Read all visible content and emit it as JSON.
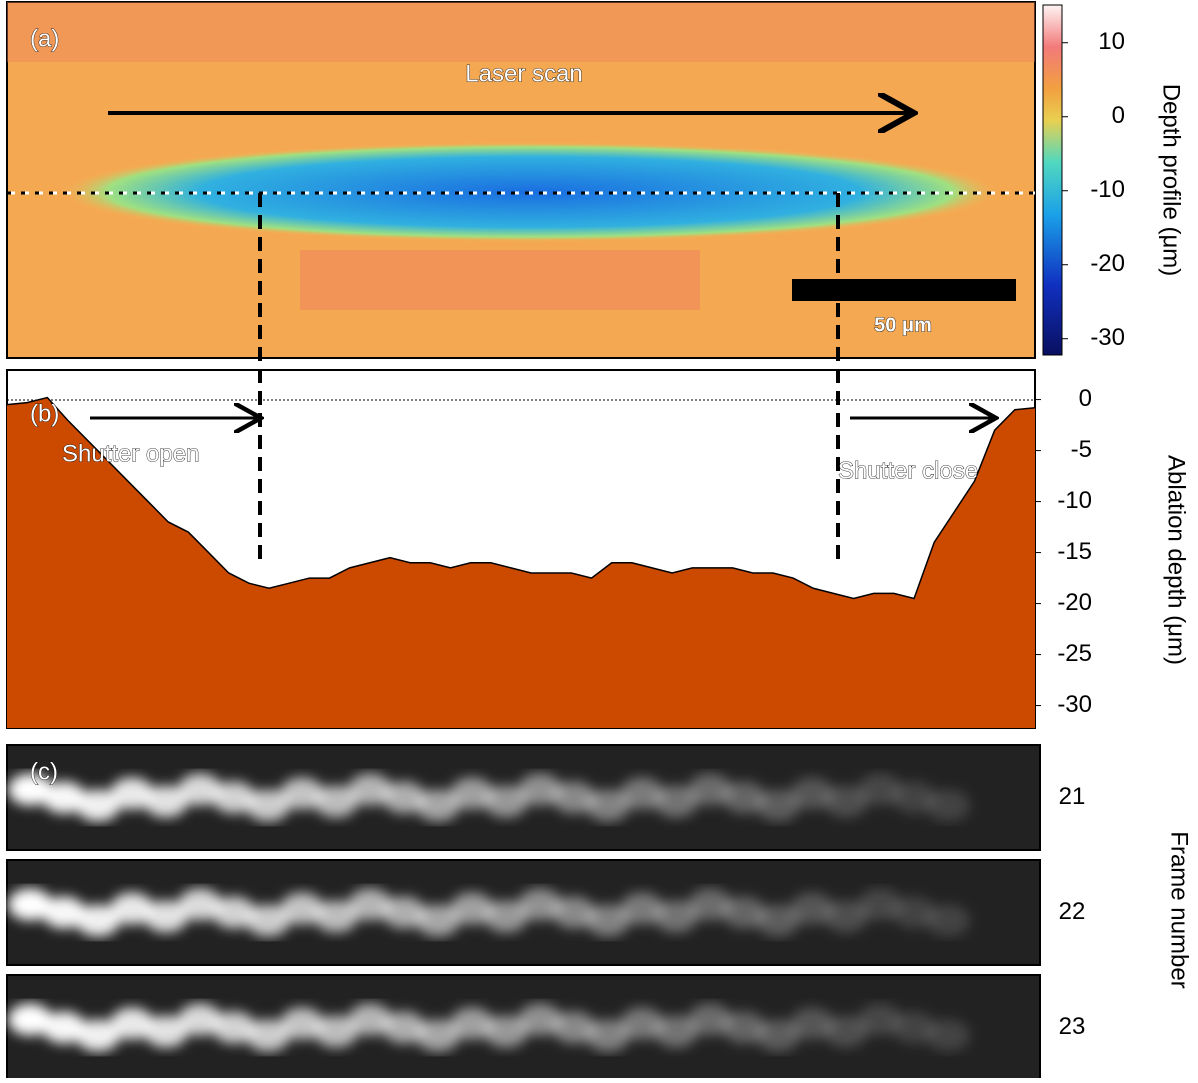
{
  "chart_data": [
    {
      "type": "heatmap",
      "label": "(a)",
      "annotation": "Laser scan",
      "scale_bar": "50 μm",
      "colorbar_label": "Depth profile (μm)",
      "clim": [
        -32.2,
        15.1
      ],
      "cticks": [
        10,
        0,
        -10,
        -20,
        -30
      ]
    },
    {
      "type": "area",
      "label": "(b)",
      "annotations": [
        "Shutter open",
        "Shutter close"
      ],
      "y_label": "Ablation depth (μm)",
      "color": "#cc4a00",
      "ylim": [
        -32.2,
        2.9
      ],
      "yticks": [
        0,
        -5,
        -10,
        -15,
        -20,
        -25,
        -30
      ],
      "values": [
        -0.5,
        -0.3,
        0.2,
        -2,
        -4,
        -6,
        -8,
        -10,
        -12,
        -13,
        -15,
        -17,
        -18,
        -18.5,
        -18,
        -17.5,
        -17.5,
        -16.5,
        -16,
        -15.5,
        -16,
        -16,
        -16.5,
        -16,
        -16,
        -16.5,
        -17,
        -17,
        -17,
        -17.5,
        -16,
        -16,
        -16.5,
        -17,
        -16.5,
        -16.5,
        -16.5,
        -17,
        -17,
        -17.5,
        -18.5,
        -19,
        -19.5,
        -19,
        -19,
        -19.5,
        -14,
        -11,
        -8,
        -3,
        -1,
        -0.8
      ]
    },
    {
      "type": "image",
      "label": "(c)",
      "y_label": "Frame number",
      "categories": [
        21,
        22,
        23
      ]
    }
  ]
}
